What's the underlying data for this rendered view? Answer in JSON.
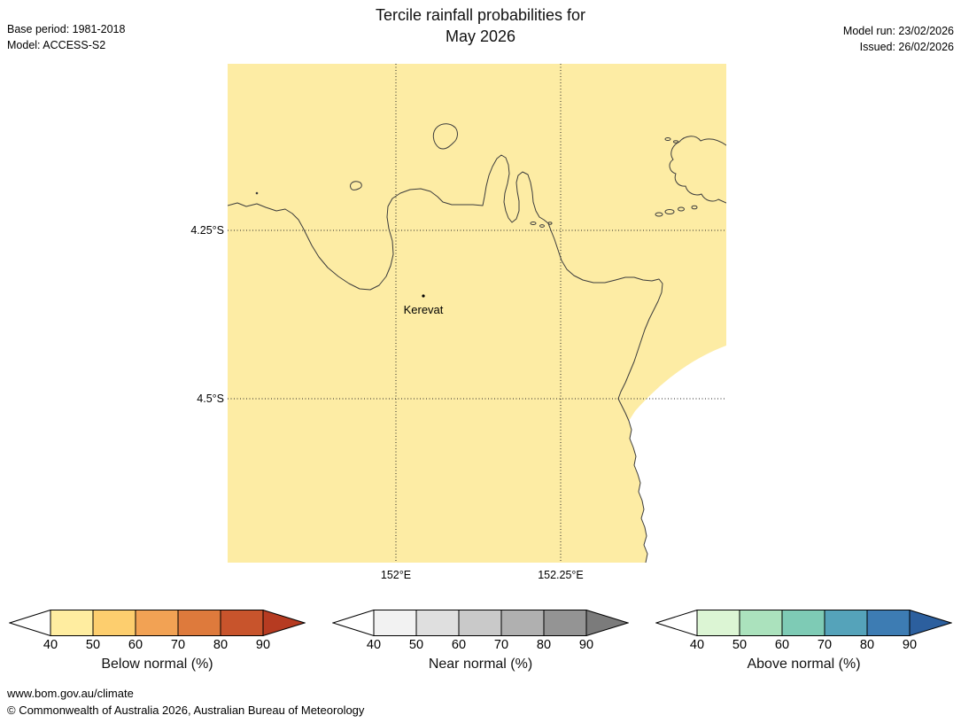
{
  "header": {
    "title_line1": "Tercile rainfall probabilities for",
    "title_line2": "May 2026",
    "base_period": "Base period: 1981-2018",
    "model": "Model: ACCESS-S2",
    "model_run": "Model run: 23/02/2026",
    "issued": "Issued: 26/02/2026"
  },
  "map": {
    "land_color": "#fdeca4",
    "ocean_color": "#ffffff",
    "coast_color": "#3c3c3c",
    "lat_labels": [
      "4.25°S",
      "4.5°S"
    ],
    "lon_labels": [
      "152°E",
      "152.25°E"
    ],
    "station": {
      "label": "Kerevat"
    }
  },
  "legend": {
    "bars": [
      {
        "label": "Below normal (%)",
        "ticks": [
          "40",
          "50",
          "60",
          "70",
          "80",
          "90"
        ],
        "start_color": "#ffffff",
        "segment_colors": [
          "#ffeda0",
          "#fdce6e",
          "#f2a254",
          "#de7a3c",
          "#c8542c"
        ],
        "arrow_color": "#b63b21"
      },
      {
        "label": "Near normal (%)",
        "ticks": [
          "40",
          "50",
          "60",
          "70",
          "80",
          "90"
        ],
        "start_color": "#ffffff",
        "segment_colors": [
          "#f2f2f2",
          "#dfdfdf",
          "#c9c9c9",
          "#b0b0b0",
          "#949494"
        ],
        "arrow_color": "#7b7b7b"
      },
      {
        "label": "Above normal (%)",
        "ticks": [
          "40",
          "50",
          "60",
          "70",
          "80",
          "90"
        ],
        "start_color": "#ffffff",
        "segment_colors": [
          "#dcf5d4",
          "#abe2bd",
          "#7ecbb5",
          "#55a3ba",
          "#3d7cb3"
        ],
        "arrow_color": "#2c5f9e"
      }
    ]
  },
  "footer": {
    "url": "www.bom.gov.au/climate",
    "copyright": "© Commonwealth of Australia 2026, Australian Bureau of Meteorology"
  }
}
